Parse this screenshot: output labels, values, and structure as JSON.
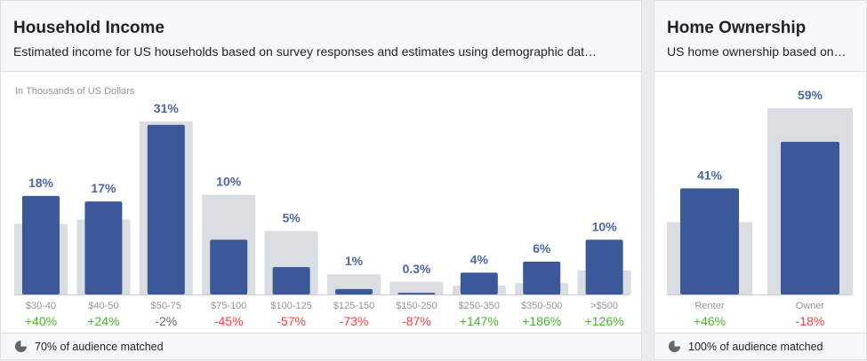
{
  "income": {
    "title": "Household Income",
    "subtitle": "Estimated income for US households based on survey responses and estimates using demographic dat…",
    "unit_label": "In Thousands of US Dollars",
    "footer": "70% of audience matched"
  },
  "home": {
    "title": "Home Ownership",
    "subtitle": "US home ownership based on…",
    "footer": "100% of audience matched"
  },
  "colors": {
    "audience_bar": "#3b5998",
    "baseline_bar": "#dadde1",
    "value_label": "#4b67a1",
    "positive": "#42b72a",
    "negative": "#fa3e3e",
    "neutral": "#606770",
    "category": "#90949c"
  },
  "chart_data": [
    {
      "type": "bar",
      "categories": [
        "$30-40",
        "$40-50",
        "$50-75",
        "$75-100",
        "$100-125",
        "$125-150",
        "$150-250",
        "$250-350",
        "$350-500",
        ">$500"
      ],
      "series": [
        {
          "values": [
            18,
            17,
            31,
            10,
            5,
            1,
            0.3,
            4,
            6,
            10
          ]
        },
        {
          "values": [
            12.9,
            13.7,
            31.6,
            18.2,
            11.6,
            3.7,
            2.3,
            1.6,
            2.1,
            4.4
          ]
        }
      ],
      "value_labels": [
        "18%",
        "17%",
        "31%",
        "10%",
        "5%",
        "1%",
        "0.3%",
        "4%",
        "6%",
        "10%"
      ],
      "diff_labels": [
        "+40%",
        "+24%",
        "-2%",
        "-45%",
        "-57%",
        "-73%",
        "-87%",
        "+147%",
        "+186%",
        "+126%"
      ],
      "ylim": [
        0,
        31.6
      ],
      "grid": false
    },
    {
      "type": "bar",
      "categories": [
        "Renter",
        "Owner"
      ],
      "series": [
        {
          "values": [
            41,
            59
          ]
        },
        {
          "values": [
            28,
            72
          ]
        }
      ],
      "value_labels": [
        "41%",
        "59%"
      ],
      "diff_labels": [
        "+46%",
        "-18%"
      ],
      "ylim": [
        0,
        72
      ],
      "grid": false
    }
  ]
}
